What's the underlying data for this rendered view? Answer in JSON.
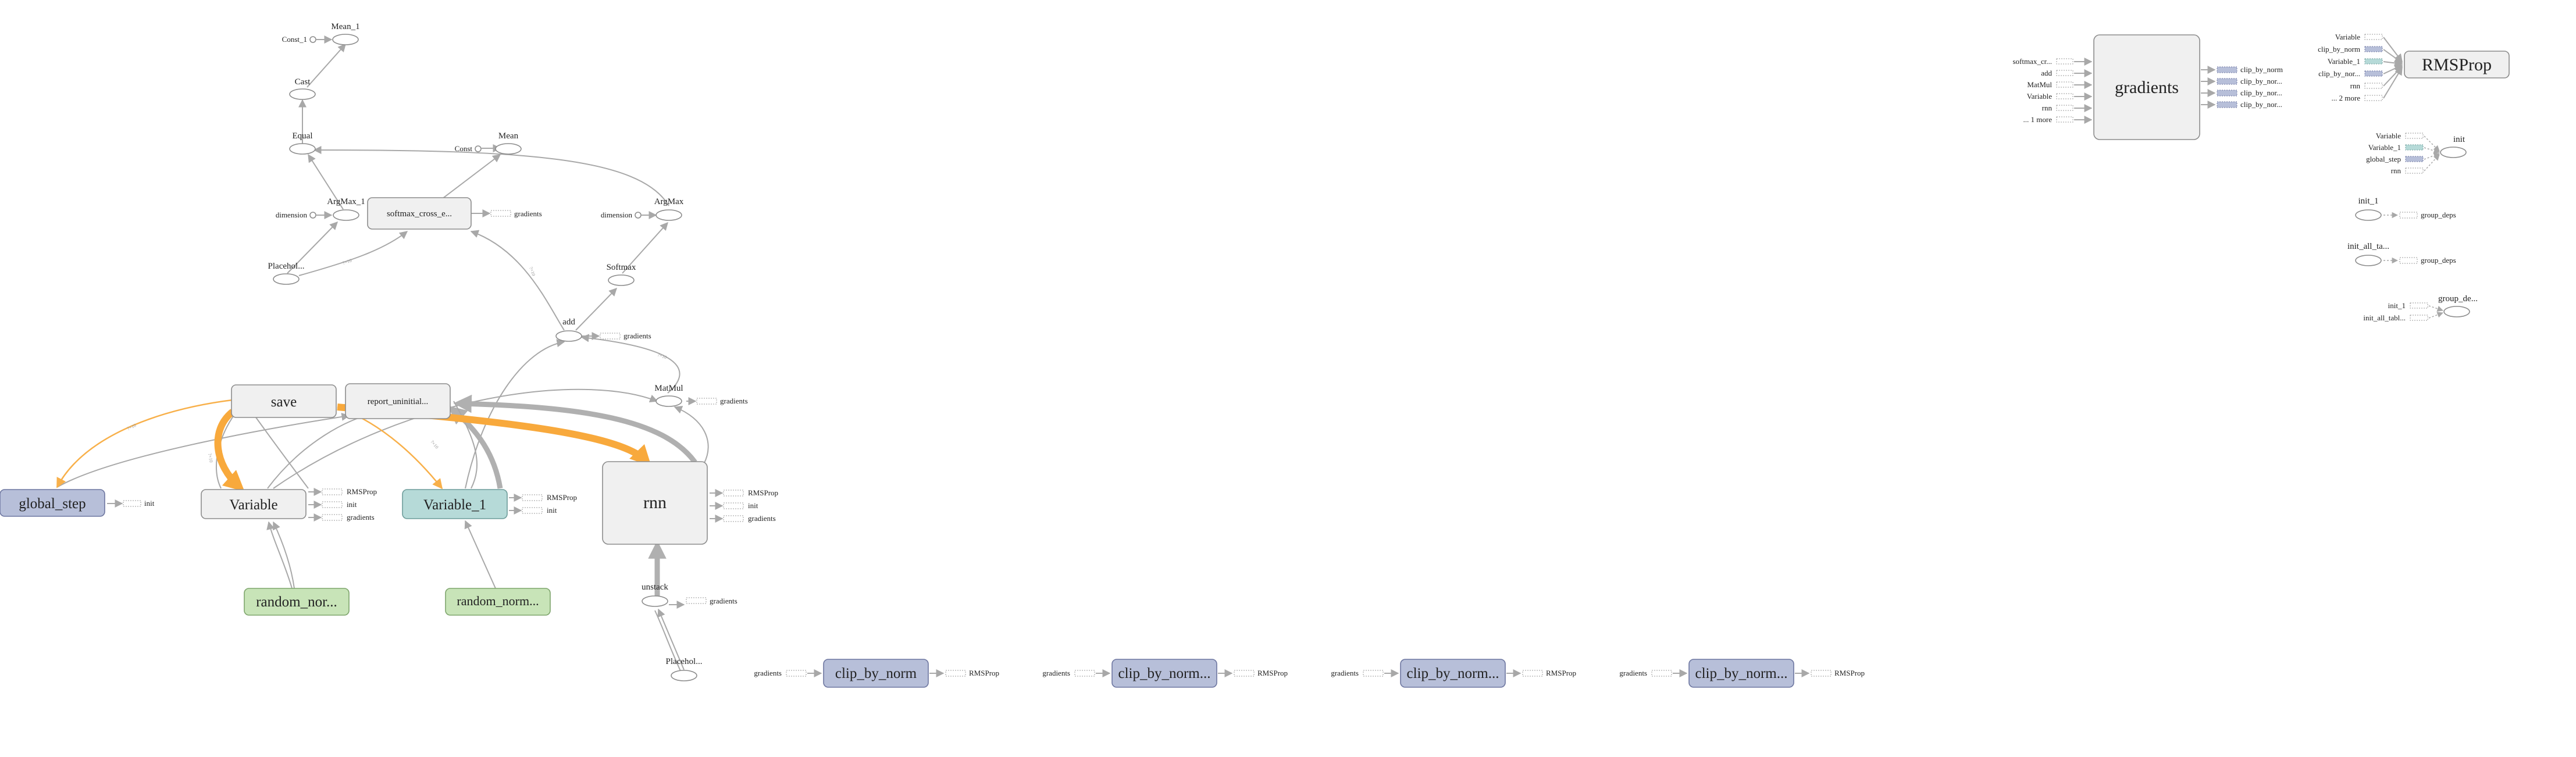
{
  "nodes": {
    "mean_1": "Mean_1",
    "const_1": "Const_1",
    "cast": "Cast",
    "equal": "Equal",
    "mean": "Mean",
    "const": "Const",
    "argmax_1": "ArgMax_1",
    "argmax": "ArgMax",
    "dimension": "dimension",
    "softmax_cross": "softmax_cross_e...",
    "placeholder_top": "Placehol...",
    "softmax": "Softmax",
    "add": "add",
    "matmul": "MatMul",
    "save": "save",
    "report_uninit": "report_uninitial...",
    "global_step": "global_step",
    "variable": "Variable",
    "variable_1": "Variable_1",
    "rnn": "rnn",
    "random_nor": "random_nor...",
    "random_norm": "random_norm...",
    "unstack": "unstack",
    "placeholder_bottom": "Placehol...",
    "clip_by_norm": "clip_by_norm",
    "clip_by_norm_more": "clip_by_norm...",
    "gradients": "gradients",
    "rmsprop": "RMSProp",
    "init": "init",
    "init_1": "init_1",
    "init_all_tables": "init_all_ta...",
    "group_deps": "group_deps",
    "group_de": "group_de..."
  },
  "stubs": {
    "gradients": "gradients",
    "rmsprop": "RMSProp",
    "init": "init"
  },
  "gradients_inputs": [
    "softmax_cr...",
    "add",
    "MatMul",
    "Variable",
    "rnn",
    "... 1 more"
  ],
  "gradients_outputs": [
    "clip_by_norm",
    "clip_by_nor...",
    "clip_by_nor...",
    "clip_by_nor..."
  ],
  "rmsprop_inputs": [
    "Variable",
    "clip_by_norm",
    "Variable_1",
    "clip_by_nor...",
    "rnn",
    "... 2 more"
  ],
  "init_inputs": [
    "Variable",
    "Variable_1",
    "global_step",
    "rnn"
  ],
  "group_de_inputs": [
    "init_1",
    "init_all_tabl..."
  ],
  "colors": {
    "blue_node": "#b7bfd9",
    "teal_node": "#b6dad8",
    "green_node": "#c8e4b8",
    "meta_node": "#f0f0f0",
    "ref_edge": "#f8b04a",
    "edge": "#a8a8a8"
  }
}
